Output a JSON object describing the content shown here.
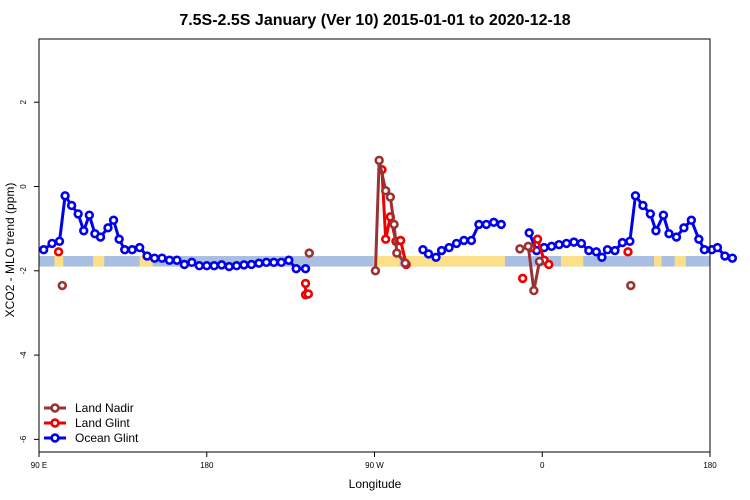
{
  "chart_data": {
    "type": "line",
    "title": "7.5S-2.5S January (Ver 10)   2015-01-01 to 2020-12-18",
    "xlabel": "Longitude",
    "ylabel": "XCO2 - MLO trend (ppm)",
    "xlim": [
      90,
      450
    ],
    "ylim": [
      -6.3,
      3.5
    ],
    "x_ticks": [
      {
        "value": 90,
        "label": "90 E"
      },
      {
        "value": 180,
        "label": "180"
      },
      {
        "value": 270,
        "label": "90 W"
      },
      {
        "value": 360,
        "label": "0"
      },
      {
        "value": 450,
        "label": "180"
      }
    ],
    "y_ticks": [
      {
        "value": -6,
        "label": "-6"
      },
      {
        "value": -4,
        "label": "-4"
      },
      {
        "value": -2,
        "label": "-2"
      },
      {
        "value": 0,
        "label": "0"
      },
      {
        "value": 2,
        "label": "2"
      }
    ],
    "grid": false,
    "legend": {
      "placement": "bottom-left",
      "entries": [
        "Land Nadir",
        "Land Glint",
        "Ocean Glint"
      ]
    },
    "land_ocean_strip": {
      "y_range": [
        -1.9,
        -1.65
      ],
      "ocean_color": "#a9bfe2",
      "land_color": "#fbe089",
      "land_spans": [
        [
          98.3,
          103
        ],
        [
          119,
          125
        ],
        [
          144,
          151
        ],
        [
          269.5,
          283.5
        ],
        [
          285,
          340
        ],
        [
          370,
          382
        ],
        [
          420,
          424
        ],
        [
          431,
          437
        ]
      ]
    },
    "series": [
      {
        "name": "Ocean Glint",
        "color": "#0000ee",
        "connected": true,
        "points": [
          [
            92.5,
            -1.5
          ],
          [
            97,
            -1.35
          ],
          [
            101,
            -1.3
          ],
          [
            104,
            -0.22
          ],
          [
            107.5,
            -0.45
          ],
          [
            111,
            -0.65
          ],
          [
            114,
            -1.05
          ],
          [
            117,
            -0.68
          ],
          [
            120,
            -1.12
          ],
          [
            123,
            -1.2
          ],
          [
            127,
            -0.98
          ],
          [
            130,
            -0.8
          ],
          [
            133,
            -1.25
          ],
          [
            136,
            -1.5
          ],
          [
            140,
            -1.5
          ],
          [
            144,
            -1.45
          ],
          [
            148,
            -1.65
          ],
          [
            152,
            -1.7
          ],
          [
            156,
            -1.7
          ],
          [
            160,
            -1.75
          ],
          [
            164,
            -1.75
          ],
          [
            168,
            -1.85
          ],
          [
            172,
            -1.8
          ],
          [
            176,
            -1.88
          ],
          [
            180,
            -1.88
          ],
          [
            184,
            -1.88
          ],
          [
            188,
            -1.86
          ],
          [
            192,
            -1.9
          ],
          [
            196,
            -1.88
          ],
          [
            200,
            -1.86
          ],
          [
            204,
            -1.85
          ],
          [
            208,
            -1.82
          ],
          [
            212,
            -1.8
          ],
          [
            216,
            -1.8
          ],
          [
            220,
            -1.8
          ],
          [
            224,
            -1.75
          ],
          [
            228,
            -1.95
          ],
          [
            233,
            -1.95
          ],
          null,
          [
            296,
            -1.5
          ],
          [
            299,
            -1.6
          ],
          [
            303,
            -1.68
          ],
          [
            306,
            -1.52
          ],
          [
            310,
            -1.45
          ],
          [
            314,
            -1.35
          ],
          [
            318,
            -1.28
          ],
          [
            322,
            -1.28
          ],
          [
            326,
            -0.9
          ],
          [
            330,
            -0.9
          ],
          [
            334,
            -0.85
          ],
          [
            338,
            -0.9
          ],
          null,
          [
            353,
            -1.1
          ],
          [
            357,
            -1.52
          ],
          [
            361,
            -1.45
          ],
          [
            365,
            -1.42
          ],
          [
            369,
            -1.38
          ],
          [
            373,
            -1.35
          ],
          [
            377,
            -1.32
          ],
          [
            381,
            -1.35
          ],
          [
            385,
            -1.52
          ],
          [
            389,
            -1.55
          ],
          [
            392,
            -1.68
          ],
          [
            395,
            -1.5
          ],
          [
            399,
            -1.52
          ],
          [
            403,
            -1.33
          ],
          [
            407,
            -1.3
          ],
          [
            410,
            -0.22
          ],
          [
            414,
            -0.45
          ],
          [
            418,
            -0.65
          ],
          [
            421,
            -1.05
          ],
          [
            425,
            -0.68
          ],
          [
            428,
            -1.12
          ],
          [
            432,
            -1.2
          ],
          [
            436,
            -0.98
          ],
          [
            440,
            -0.8
          ],
          [
            444,
            -1.25
          ],
          [
            447,
            -1.5
          ],
          [
            451,
            -1.5
          ],
          [
            454,
            -1.45
          ],
          [
            458,
            -1.65
          ],
          [
            462,
            -1.7
          ]
        ]
      },
      {
        "name": "Land Glint",
        "color": "#ee0000",
        "connected": true,
        "points": [
          [
            100.5,
            -1.55
          ],
          null,
          [
            233,
            -2.3
          ],
          [
            233,
            -2.57
          ],
          [
            234.5,
            -2.55
          ],
          null,
          [
            274,
            0.4
          ],
          [
            276,
            -1.25
          ],
          [
            278.5,
            -0.72
          ],
          [
            281.5,
            -1.3
          ],
          [
            284,
            -1.28
          ],
          [
            287,
            -1.85
          ],
          null,
          [
            349.5,
            -2.18
          ],
          null,
          [
            354,
            -1.45
          ],
          [
            357.5,
            -1.25
          ],
          [
            361,
            -1.75
          ],
          [
            363.5,
            -1.85
          ],
          null,
          [
            406,
            -1.55
          ]
        ]
      },
      {
        "name": "Land Nadir",
        "color": "#993333",
        "connected": true,
        "points": [
          [
            102.5,
            -2.35
          ],
          null,
          [
            235,
            -1.58
          ],
          null,
          [
            270.5,
            -2.0
          ],
          [
            272.5,
            0.62
          ],
          [
            276,
            -0.1
          ],
          [
            278.5,
            -0.25
          ],
          [
            280.5,
            -0.9
          ],
          [
            282,
            -1.58
          ],
          [
            286.5,
            -1.82
          ],
          null,
          [
            348,
            -1.48
          ],
          null,
          [
            352.5,
            -1.42
          ],
          [
            355.5,
            -2.47
          ],
          [
            358.5,
            -1.78
          ],
          null,
          [
            407.5,
            -2.35
          ]
        ]
      }
    ]
  }
}
